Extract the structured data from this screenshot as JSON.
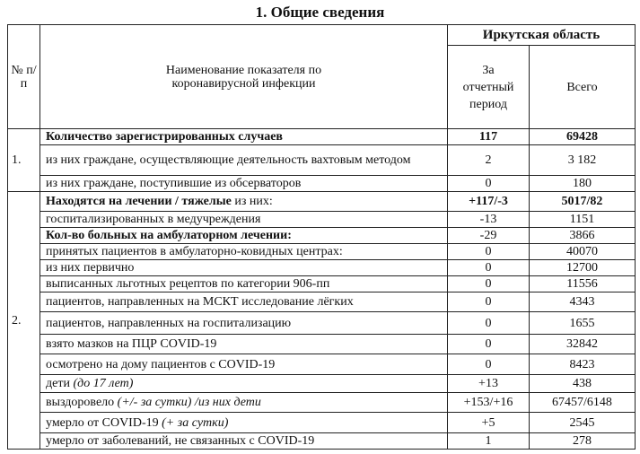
{
  "title": "1. Общие сведения",
  "header": {
    "num": "№ п/п",
    "name": "Наименование показателя по коронавирусной инфекции",
    "region": "Иркутская область",
    "period": "За отчетный период",
    "total": "Всего"
  },
  "sections": [
    {
      "num": "1.",
      "rows": [
        {
          "parts": [
            {
              "t": "Количество зарегистрированных случаев",
              "b": true
            }
          ],
          "period": "117",
          "total": "69428",
          "bold_values": true
        },
        {
          "parts": [
            {
              "t": "из них граждане, осуществляющие деятельность вахтовым методом"
            }
          ],
          "period": "2",
          "total": "3 182"
        },
        {
          "parts": [
            {
              "t": "из них граждане, поступившие из обсерваторов"
            }
          ],
          "period": "0",
          "total": "180"
        }
      ]
    },
    {
      "num": "2.",
      "rows": [
        {
          "parts": [
            {
              "t": "Находятся на лечении / тяжелые",
              "b": true
            },
            {
              "t": " из них:"
            }
          ],
          "period": "+117/-3",
          "total": "5017/82",
          "bold_values": true
        },
        {
          "parts": [
            {
              "t": "госпитализированных в медучреждения"
            }
          ],
          "period": "-13",
          "total": "1151"
        },
        {
          "parts": [
            {
              "t": "Кол-во больных на амбулаторном лечении:",
              "b": true
            }
          ],
          "period": "-29",
          "total": "3866"
        },
        {
          "parts": [
            {
              "t": "принятых пациентов в амбулаторно-ковидных центрах:"
            }
          ],
          "period": "0",
          "total": "40070"
        },
        {
          "parts": [
            {
              "t": "из них первично"
            }
          ],
          "period": "0",
          "total": "12700"
        },
        {
          "parts": [
            {
              "t": "выписанных льготных рецептов по категории 906-пп"
            }
          ],
          "period": "0",
          "total": "11556"
        },
        {
          "parts": [
            {
              "t": "пациентов, направленных на МСКТ исследование лёгких"
            }
          ],
          "period": "0",
          "total": "4343"
        },
        {
          "parts": [
            {
              "t": "пациентов, направленных на госпитализацию"
            }
          ],
          "period": "0",
          "total": "1655"
        },
        {
          "parts": [
            {
              "t": "взято мазков на ПЦР COVID-19"
            }
          ],
          "period": "0",
          "total": "32842"
        },
        {
          "parts": [
            {
              "t": "осмотрено на дому пациентов с COVID-19"
            }
          ],
          "period": "0",
          "total": "8423"
        },
        {
          "parts": [
            {
              "t": "дети "
            },
            {
              "t": "(до 17 лет)",
              "i": true
            }
          ],
          "period": "+13",
          "total": "438"
        },
        {
          "parts": [
            {
              "t": "выздоровело "
            },
            {
              "t": "(+/- за сутки) /из них дети",
              "i": true
            }
          ],
          "period": "+153/+16",
          "total": "67457/6148"
        },
        {
          "parts": [
            {
              "t": "умерло от COVID-19 "
            },
            {
              "t": "(+ за сутки)",
              "i": true
            }
          ],
          "period": "+5",
          "total": "2545"
        },
        {
          "parts": [
            {
              "t": "умерло от заболеваний, не связанных с COVID-19"
            }
          ],
          "period": "1",
          "total": "278"
        }
      ]
    }
  ]
}
